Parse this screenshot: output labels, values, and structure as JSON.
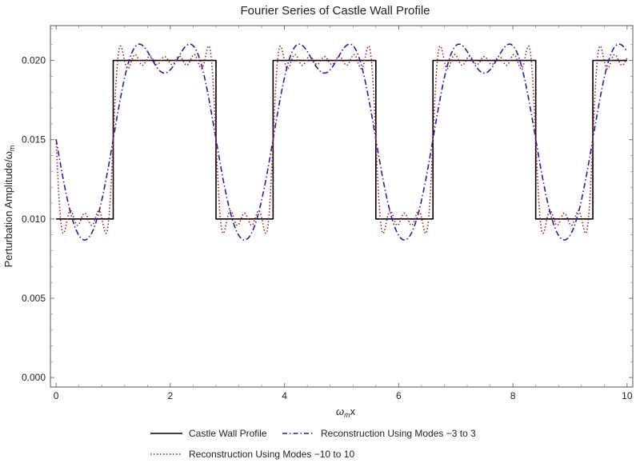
{
  "chart_data": {
    "type": "line",
    "title": "Fourier Series of Castle Wall Profile",
    "xlabel": {
      "main": "ω",
      "sub": "m",
      "rest": "x"
    },
    "ylabel": {
      "main": "Perturbation Amplitude/ω",
      "sub": "m"
    },
    "xlim": [
      -0.1,
      10.1
    ],
    "ylim": [
      -0.0006,
      0.0222
    ],
    "x_ticks": [
      0,
      2,
      4,
      6,
      8,
      10
    ],
    "x_tick_labels": [
      "0",
      "2",
      "4",
      "6",
      "8",
      "10"
    ],
    "y_ticks": [
      0.0,
      0.005,
      0.01,
      0.015,
      0.02
    ],
    "y_tick_labels": [
      "0.000",
      "0.005",
      "0.010",
      "0.015",
      "0.020"
    ],
    "grid": false,
    "legend_position": "bottom",
    "wall": {
      "period": 2.8,
      "low_start": 0.0,
      "low_end": 1.0,
      "high_end": 2.8,
      "low_value": 0.01,
      "high_value": 0.02,
      "x_max": 10.0
    },
    "series": [
      {
        "name": "Castle Wall Profile",
        "color": "#000000",
        "style": "solid",
        "modes": 0
      },
      {
        "name": "Reconstruction Using Modes −3 to 3",
        "color": "#1f1fb4",
        "style": "dashdot",
        "modes": 3
      },
      {
        "name": "Reconstruction Using Modes −10 to 10",
        "color": "#b01a1a",
        "style": "dotted",
        "modes": 10
      }
    ]
  }
}
